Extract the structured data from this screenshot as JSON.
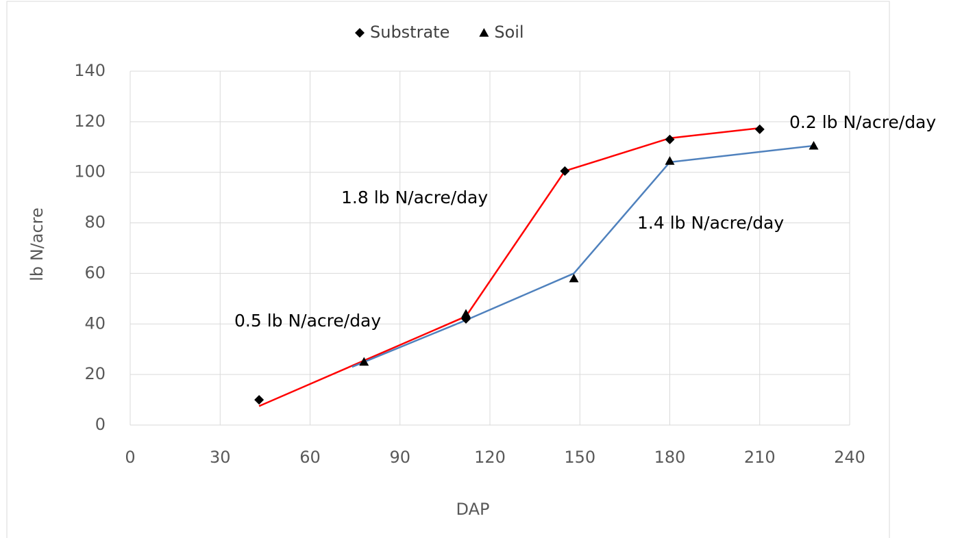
{
  "chart_data": {
    "type": "scatter",
    "x_label": "DAP",
    "y_label": "lb N/acre",
    "xlim": [
      0,
      240
    ],
    "xticks": [
      0,
      30,
      60,
      90,
      120,
      150,
      180,
      210,
      240
    ],
    "ylim": [
      0,
      140
    ],
    "yticks": [
      0,
      20,
      40,
      60,
      80,
      100,
      120,
      140
    ],
    "grid": true,
    "legend": "top",
    "series": [
      {
        "name": "Substrate",
        "color": "#000000",
        "marker": "diamond",
        "x": [
          43,
          112,
          145,
          180,
          210
        ],
        "values": [
          10,
          42,
          100.5,
          113,
          117
        ]
      },
      {
        "name": "Soil",
        "color": "#000000",
        "marker": "triangle",
        "x": [
          78,
          112,
          148,
          180,
          228
        ],
        "values": [
          25,
          44,
          58,
          104.5,
          110.5
        ]
      }
    ],
    "fit_lines": [
      {
        "color": "#ff0000",
        "x": [
          43,
          112,
          145,
          180,
          210
        ],
        "values": [
          7.5,
          43,
          100.5,
          113.5,
          117.5
        ]
      },
      {
        "color": "#4f81bd",
        "x": [
          74,
          112,
          148,
          180,
          228
        ],
        "values": [
          23,
          41.5,
          60,
          104,
          110.5
        ]
      }
    ],
    "annotations": [
      "0.5 lb N/acre/day",
      "1.8 lb N/acre/day",
      "1.4 lb N/acre/day",
      "0.2 lb N/acre/day"
    ]
  }
}
